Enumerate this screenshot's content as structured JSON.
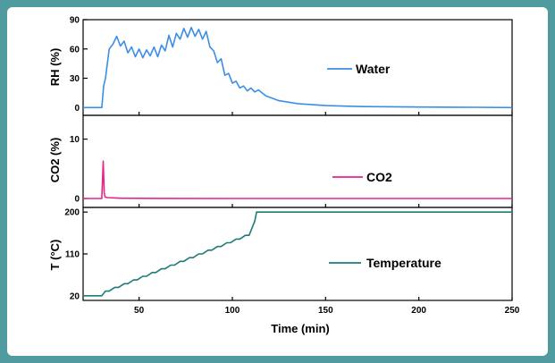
{
  "chart_data": {
    "type": "line",
    "xlabel": "Time (min)",
    "xlim": [
      20,
      250
    ],
    "xticks": [
      50,
      100,
      150,
      200,
      250
    ],
    "panels": [
      {
        "ylabel": "RH (%)",
        "ylim": [
          -8,
          90
        ],
        "yticks": [
          0,
          30,
          60,
          90
        ],
        "legend_label": "Water",
        "color": "#3a8ee6",
        "series": {
          "name": "Water",
          "x": [
            20,
            30,
            31,
            32,
            34,
            36,
            38,
            40,
            42,
            44,
            46,
            48,
            50,
            52,
            54,
            56,
            58,
            60,
            62,
            64,
            66,
            68,
            70,
            72,
            74,
            76,
            78,
            80,
            82,
            84,
            86,
            88,
            90,
            92,
            94,
            96,
            98,
            100,
            102,
            104,
            106,
            108,
            110,
            112,
            114,
            118,
            125,
            135,
            150,
            170,
            200,
            230,
            250
          ],
          "y": [
            0,
            0,
            22,
            30,
            60,
            65,
            73,
            63,
            68,
            56,
            62,
            52,
            60,
            51,
            59,
            53,
            62,
            52,
            64,
            58,
            74,
            62,
            76,
            70,
            81,
            72,
            82,
            73,
            80,
            70,
            78,
            62,
            58,
            46,
            50,
            33,
            35,
            25,
            27,
            20,
            22,
            17,
            20,
            16,
            18,
            12,
            7,
            4,
            2,
            1,
            0.5,
            0.2,
            0
          ]
        }
      },
      {
        "ylabel": "CO2 (%)",
        "ylim": [
          -1.5,
          14
        ],
        "yticks": [
          0,
          10
        ],
        "legend_label": "CO2",
        "color": "#e8238a",
        "series": {
          "name": "CO2",
          "x": [
            20,
            30,
            30.8,
            31.3,
            31.8,
            33,
            40,
            60,
            100,
            250
          ],
          "y": [
            0,
            0,
            6.3,
            1.0,
            0.25,
            0.15,
            0.05,
            0.02,
            0,
            0
          ]
        }
      },
      {
        "ylabel": "T (°C)",
        "ylim": [
          10,
          210
        ],
        "yticks": [
          20,
          110,
          200
        ],
        "legend_label": "Temperature",
        "color": "#1f7a78",
        "series": {
          "name": "Temperature",
          "x": [
            20,
            30,
            32,
            34,
            37,
            39,
            42,
            44,
            47,
            49,
            52,
            54,
            57,
            59,
            62,
            64,
            67,
            69,
            72,
            74,
            77,
            79,
            82,
            84,
            87,
            89,
            92,
            94,
            97,
            99,
            102,
            104,
            107,
            109,
            112,
            113,
            250
          ],
          "y": [
            20,
            20,
            30,
            30,
            38,
            38,
            46,
            46,
            54,
            54,
            62,
            62,
            70,
            70,
            78,
            78,
            86,
            86,
            94,
            94,
            102,
            102,
            110,
            110,
            118,
            118,
            126,
            126,
            134,
            134,
            142,
            142,
            150,
            150,
            180,
            200,
            200
          ]
        }
      }
    ]
  }
}
